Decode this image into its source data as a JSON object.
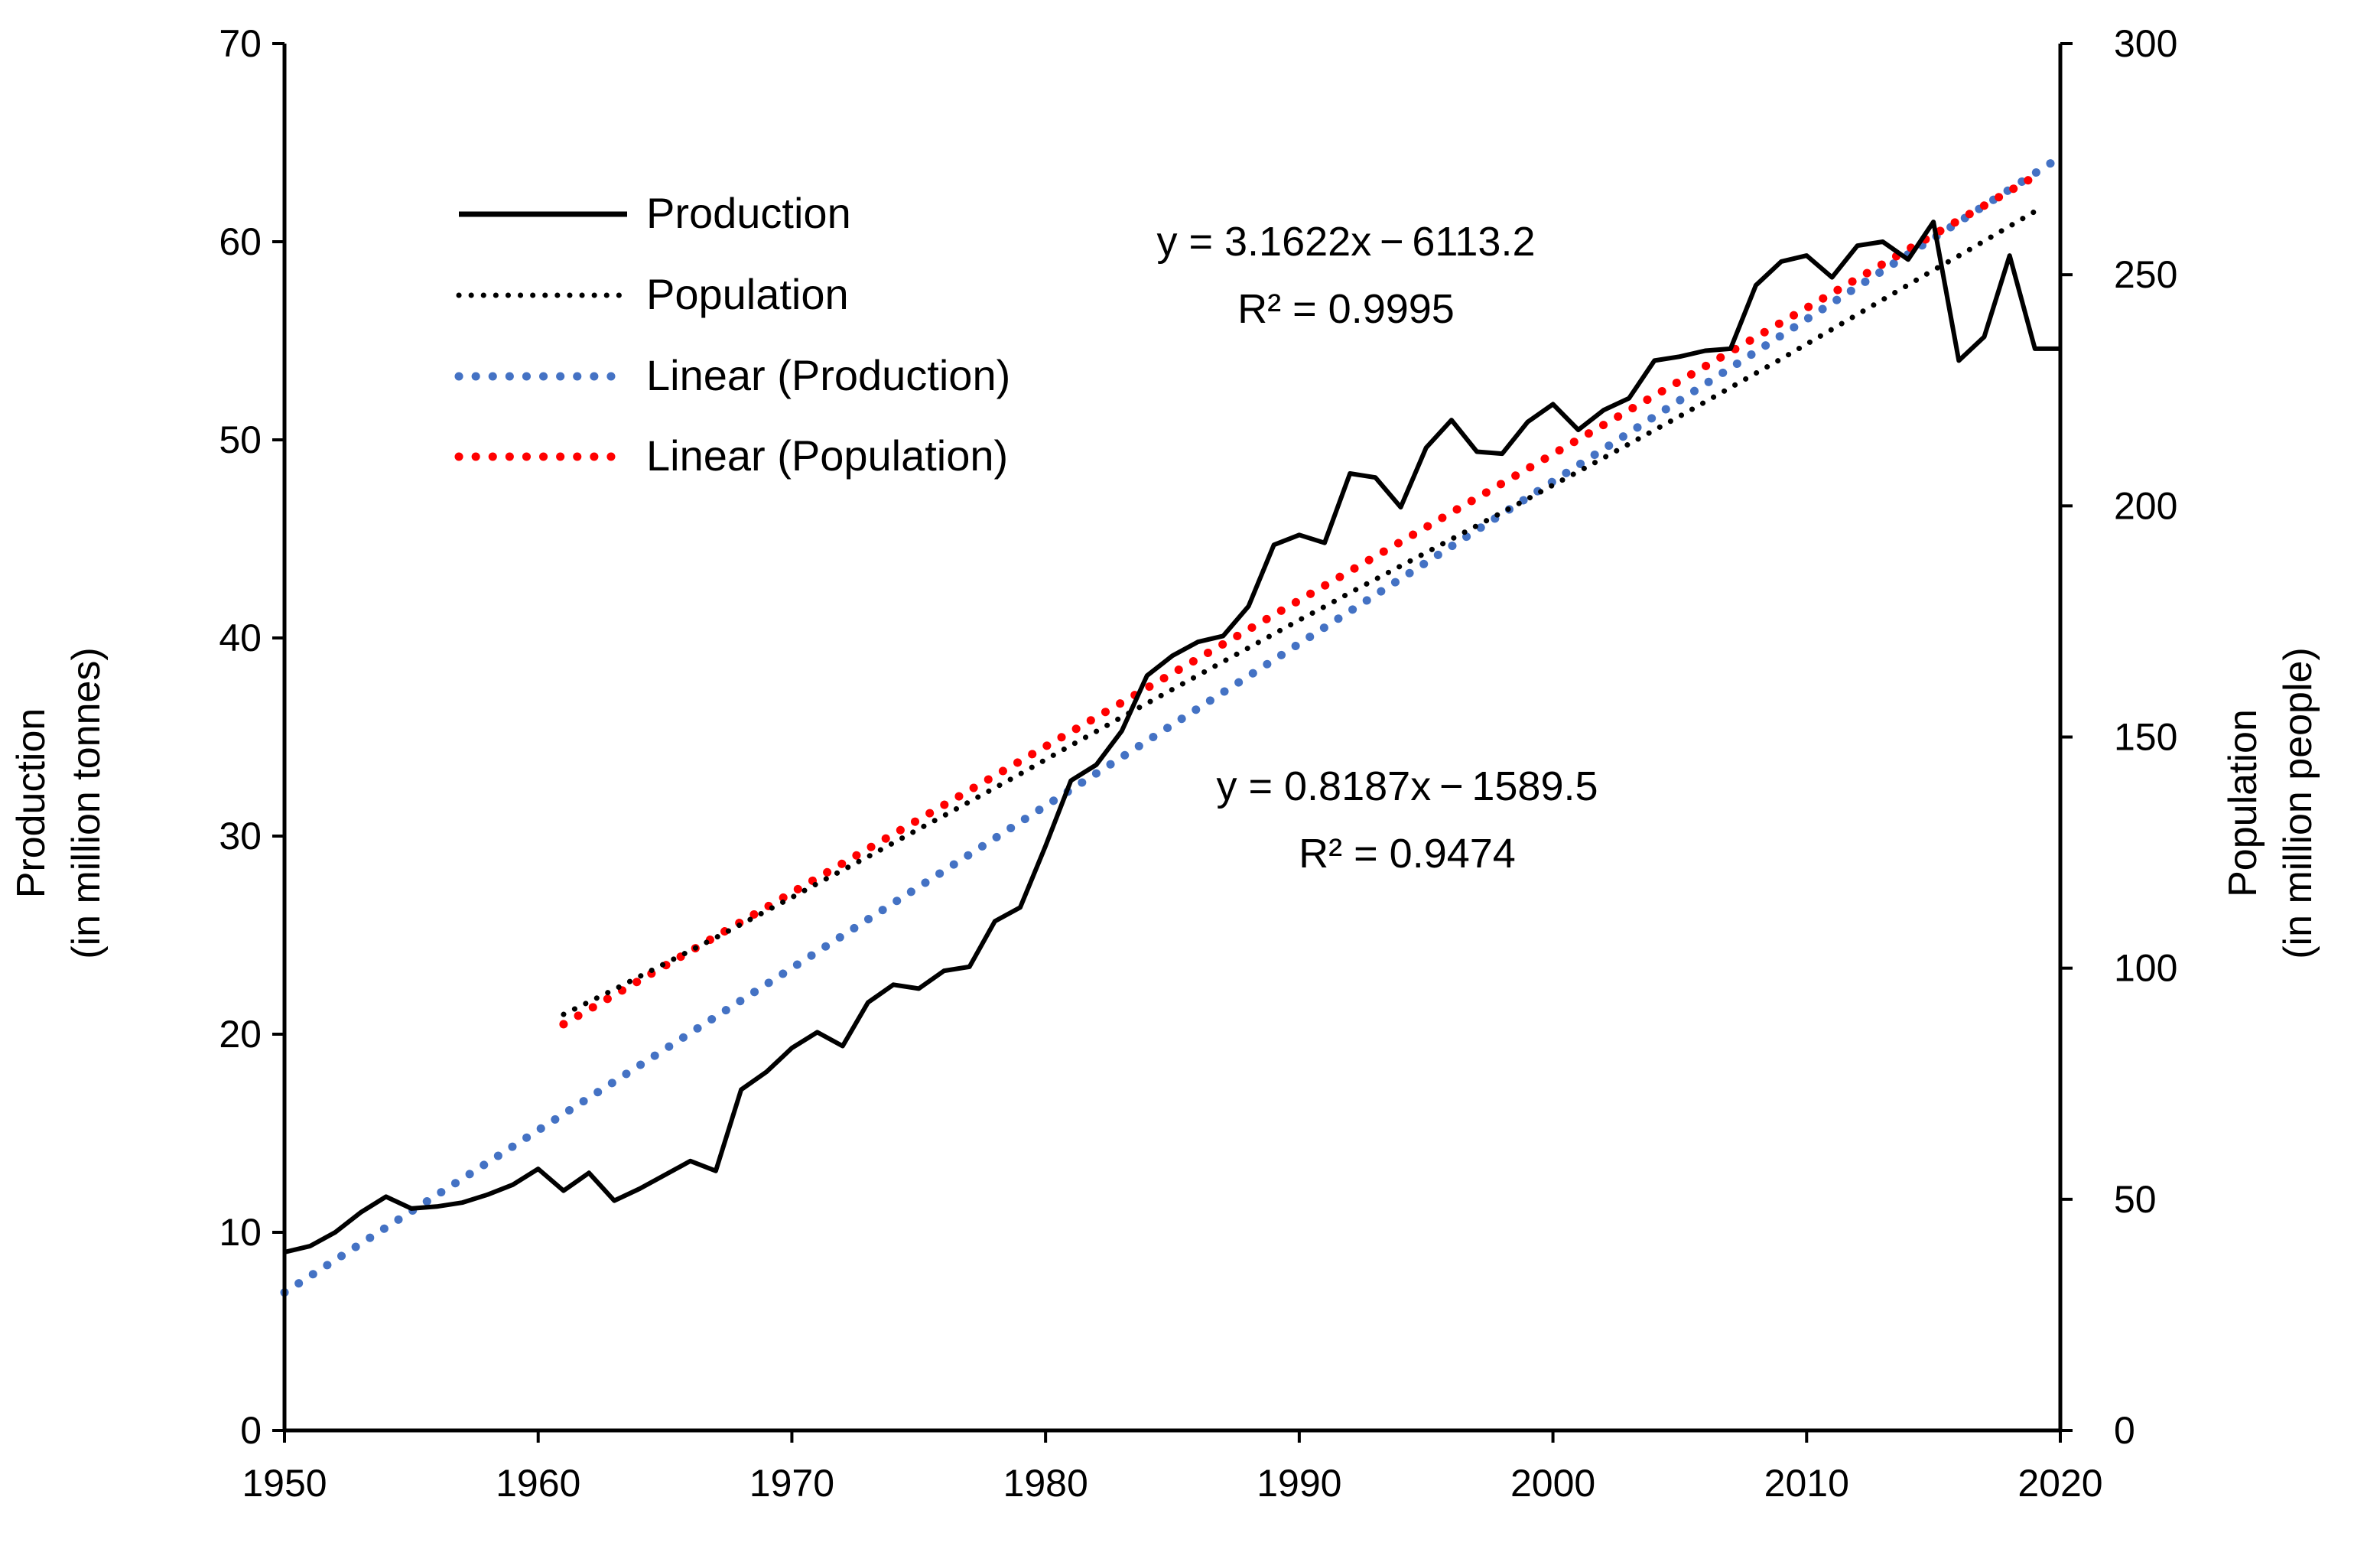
{
  "chart_data": {
    "type": "line",
    "title": "",
    "x_range": [
      1950,
      2020
    ],
    "x_ticks": [
      "1950",
      "1960",
      "1970",
      "1980",
      "1990",
      "2000",
      "2010",
      "2020"
    ],
    "y_left": {
      "label_line1": "Production",
      "label_line2": "(in million tonnes)",
      "range": [
        0,
        70
      ],
      "ticks": [
        "0",
        "10",
        "20",
        "30",
        "40",
        "50",
        "60",
        "70"
      ]
    },
    "y_right": {
      "label_line1": "Population",
      "label_line2": "(in million people)",
      "range": [
        0,
        300
      ],
      "ticks": [
        "0",
        "50",
        "100",
        "150",
        "200",
        "250",
        "300"
      ]
    },
    "legend": [
      "Production",
      "Population",
      "Linear (Production)",
      "Linear (Population)"
    ],
    "series": [
      {
        "name": "Production",
        "axis": "left",
        "style": "solid",
        "color": "#000000",
        "x": [
          1950,
          1951,
          1952,
          1953,
          1954,
          1955,
          1956,
          1957,
          1958,
          1959,
          1960,
          1961,
          1962,
          1963,
          1964,
          1965,
          1966,
          1967,
          1968,
          1969,
          1970,
          1971,
          1972,
          1973,
          1974,
          1975,
          1976,
          1977,
          1978,
          1979,
          1980,
          1981,
          1982,
          1983,
          1984,
          1985,
          1986,
          1987,
          1988,
          1989,
          1990,
          1991,
          1992,
          1993,
          1994,
          1995,
          1996,
          1997,
          1998,
          1999,
          2000,
          2001,
          2002,
          2003,
          2004,
          2005,
          2006,
          2007,
          2008,
          2009,
          2010,
          2011,
          2012,
          2013,
          2014,
          2015,
          2016,
          2017,
          2018,
          2019,
          2020
        ],
        "values": [
          9.0,
          9.3,
          10.0,
          11.0,
          11.8,
          11.2,
          11.3,
          11.5,
          11.9,
          12.4,
          13.2,
          12.1,
          13.0,
          11.6,
          12.2,
          12.9,
          13.6,
          13.1,
          17.2,
          18.1,
          19.3,
          20.1,
          19.4,
          21.6,
          22.5,
          22.3,
          23.2,
          23.4,
          25.7,
          26.4,
          29.5,
          32.8,
          33.6,
          35.3,
          38.1,
          39.1,
          39.8,
          40.1,
          41.6,
          44.7,
          45.2,
          44.8,
          48.3,
          48.1,
          46.6,
          49.6,
          51.0,
          49.4,
          49.3,
          50.9,
          51.8,
          50.5,
          51.5,
          52.1,
          54.0,
          54.2,
          54.5,
          54.6,
          57.8,
          59.0,
          59.3,
          58.2,
          59.8,
          60.0,
          59.1,
          61.0,
          54.0,
          55.2,
          59.3,
          54.6,
          54.6
        ]
      },
      {
        "name": "Population",
        "axis": "right",
        "style": "dotted",
        "color": "#000000",
        "x": [
          1961,
          1962,
          1963,
          1964,
          1965,
          1966,
          1967,
          1968,
          1969,
          1970,
          1971,
          1972,
          1973,
          1974,
          1975,
          1976,
          1977,
          1978,
          1979,
          1980,
          1981,
          1982,
          1983,
          1984,
          1985,
          1986,
          1987,
          1988,
          1989,
          1990,
          1991,
          1992,
          1993,
          1994,
          1995,
          1996,
          1997,
          1998,
          1999,
          2000,
          2001,
          2002,
          2003,
          2004,
          2005,
          2006,
          2007,
          2008,
          2009,
          2010,
          2011,
          2012,
          2013,
          2014,
          2015,
          2016,
          2017,
          2018,
          2019
        ],
        "values": [
          90,
          92.7,
          95.4,
          98.2,
          101,
          103.8,
          106.6,
          109.5,
          112.4,
          115.3,
          118.3,
          121.2,
          124.1,
          127.1,
          130.1,
          133,
          136,
          139,
          142,
          145.1,
          148.2,
          151.2,
          154.3,
          157.3,
          160.3,
          163.3,
          166.3,
          169.3,
          172.3,
          175.3,
          178.2,
          181.2,
          184.1,
          187,
          189.9,
          192.8,
          195.7,
          198.6,
          201.5,
          204.5,
          207.4,
          210.4,
          213.4,
          216.4,
          219.4,
          222.5,
          225.6,
          228.7,
          231.8,
          235,
          238.2,
          241.4,
          244.6,
          247.8,
          251,
          254.1,
          257.3,
          260.5,
          263.7
        ]
      }
    ],
    "trendlines": [
      {
        "name": "Linear (Production)",
        "axis": "left",
        "color": "#4472C4",
        "style": "dotted",
        "slope": 0.8187,
        "intercept": -1589.5,
        "x_range": [
          1950,
          2020
        ],
        "equation": "y = 0.8187x − 1589.5",
        "r2": "R² = 0.9474"
      },
      {
        "name": "Linear (Population)",
        "axis": "right",
        "color": "#FF0000",
        "style": "dotted",
        "slope": 3.1622,
        "intercept": -6113.2,
        "x_range": [
          1961,
          2019
        ],
        "equation": "y = 3.1622x − 6113.2",
        "r2": "R² = 0.9995"
      }
    ]
  }
}
